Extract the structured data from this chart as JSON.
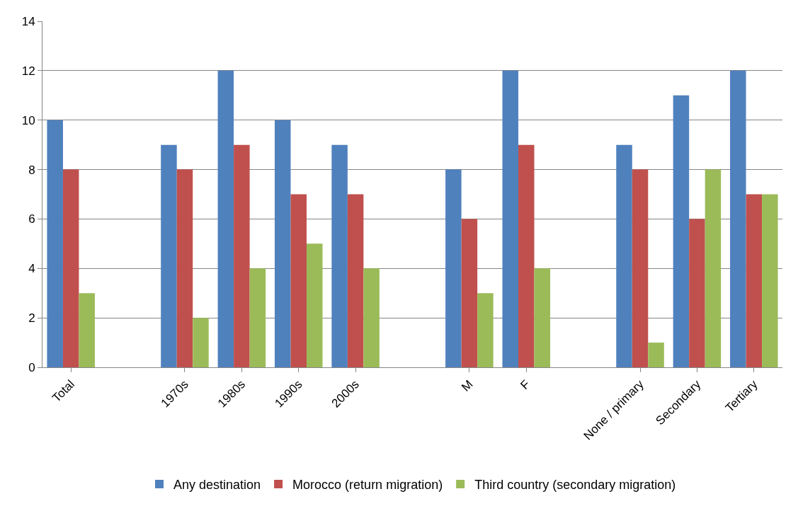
{
  "chart_data": {
    "type": "bar",
    "categories": [
      "Total",
      null,
      "1970s",
      "1980s",
      "1990s",
      "2000s",
      null,
      "M",
      "F",
      null,
      "None / primary",
      "Secondary",
      "Tertiary"
    ],
    "series": [
      {
        "name": "Any destination",
        "color": "#4f81bd",
        "values": [
          10,
          null,
          9,
          12,
          10,
          9,
          null,
          8,
          12,
          null,
          9,
          11,
          12
        ]
      },
      {
        "name": "Morocco (return migration)",
        "color": "#c0504d",
        "values": [
          8,
          null,
          8,
          9,
          7,
          7,
          null,
          6,
          9,
          null,
          8,
          6,
          7
        ]
      },
      {
        "name": "Third country (secondary migration)",
        "color": "#9bbb59",
        "values": [
          3,
          null,
          2,
          4,
          5,
          4,
          null,
          3,
          4,
          null,
          1,
          8,
          7
        ]
      }
    ],
    "ylim": [
      0,
      14
    ],
    "yticks": [
      0,
      2,
      4,
      6,
      8,
      10,
      12,
      14
    ],
    "grid": "y",
    "legend": "bottom"
  }
}
